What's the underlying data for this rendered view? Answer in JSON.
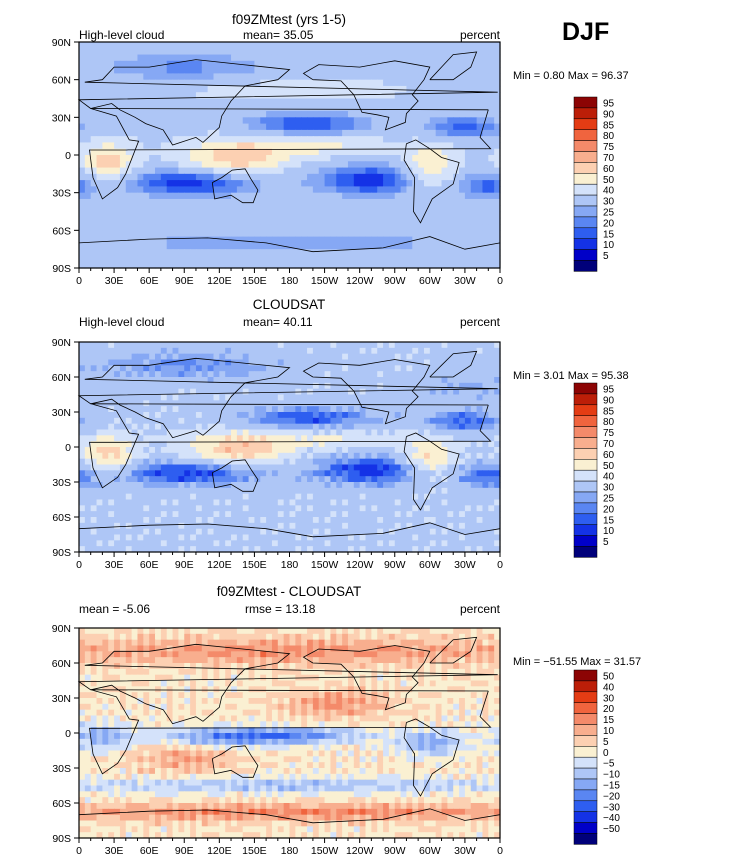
{
  "season": "DJF",
  "colors": {
    "abs_scale": [
      "#00007a",
      "#0000c8",
      "#1432e6",
      "#2e5ef0",
      "#5a86f2",
      "#86a8f4",
      "#aec6f6",
      "#d4e2fa",
      "#faf0d2",
      "#fcd0b2",
      "#f8ae8e",
      "#f48a6a",
      "#f0643e",
      "#e43c14",
      "#bc1e08",
      "#8c0404"
    ],
    "diff_scale": [
      "#00007a",
      "#0000c8",
      "#1432e6",
      "#2e5ef0",
      "#5a86f2",
      "#86a8f4",
      "#aec6f6",
      "#d4e2fa",
      "#faf0d2",
      "#fcd0b2",
      "#f8ae8e",
      "#f48a6a",
      "#f0643e",
      "#e43c14",
      "#bc1e08",
      "#8c0404"
    ]
  },
  "chart_data": [
    {
      "type": "heatmap",
      "title": "f09ZMtest (yrs 1-5)",
      "left_label": "High-level cloud",
      "stat_text": "mean=  35.05",
      "units": "percent",
      "minmax_text": "Min =    0.80 Max =  96.37",
      "x_ticks": [
        "0",
        "30E",
        "60E",
        "90E",
        "120E",
        "150E",
        "180",
        "150W",
        "120W",
        "90W",
        "60W",
        "30W",
        "0"
      ],
      "y_ticks": [
        "90N",
        "60N",
        "30N",
        "0",
        "30S",
        "60S",
        "90S"
      ],
      "legend_levels": [
        "95",
        "90",
        "85",
        "80",
        "75",
        "70",
        "60",
        "50",
        "40",
        "30",
        "25",
        "20",
        "15",
        "10",
        "5"
      ],
      "zlim": [
        0,
        100
      ]
    },
    {
      "type": "heatmap",
      "title": "CLOUDSAT",
      "left_label": "High-level cloud",
      "stat_text": "mean=  40.11",
      "units": "percent",
      "minmax_text": "Min =    3.01 Max =  95.38",
      "x_ticks": [
        "0",
        "30E",
        "60E",
        "90E",
        "120E",
        "150E",
        "180",
        "150W",
        "120W",
        "90W",
        "60W",
        "30W",
        "0"
      ],
      "y_ticks": [
        "90N",
        "60N",
        "30N",
        "0",
        "30S",
        "60S",
        "90S"
      ],
      "legend_levels": [
        "95",
        "90",
        "85",
        "80",
        "75",
        "70",
        "60",
        "50",
        "40",
        "30",
        "25",
        "20",
        "15",
        "10",
        "5"
      ],
      "zlim": [
        0,
        100
      ]
    },
    {
      "type": "heatmap",
      "title": "f09ZMtest - CLOUDSAT",
      "left_label": "mean =   -5.06",
      "stat_text": "rmse =   13.18",
      "units": "percent",
      "minmax_text": "Min = −51.55 Max =   31.57",
      "x_ticks": [
        "0",
        "30E",
        "60E",
        "90E",
        "120E",
        "150E",
        "180",
        "150W",
        "120W",
        "90W",
        "60W",
        "30W",
        "0"
      ],
      "y_ticks": [
        "90N",
        "60N",
        "30N",
        "0",
        "30S",
        "60S",
        "90S"
      ],
      "legend_levels": [
        "50",
        "40",
        "30",
        "20",
        "15",
        "10",
        "5",
        "0",
        "−5",
        "−10",
        "−15",
        "−20",
        "−30",
        "−40",
        "−50"
      ],
      "zlim": [
        -60,
        60
      ]
    }
  ]
}
